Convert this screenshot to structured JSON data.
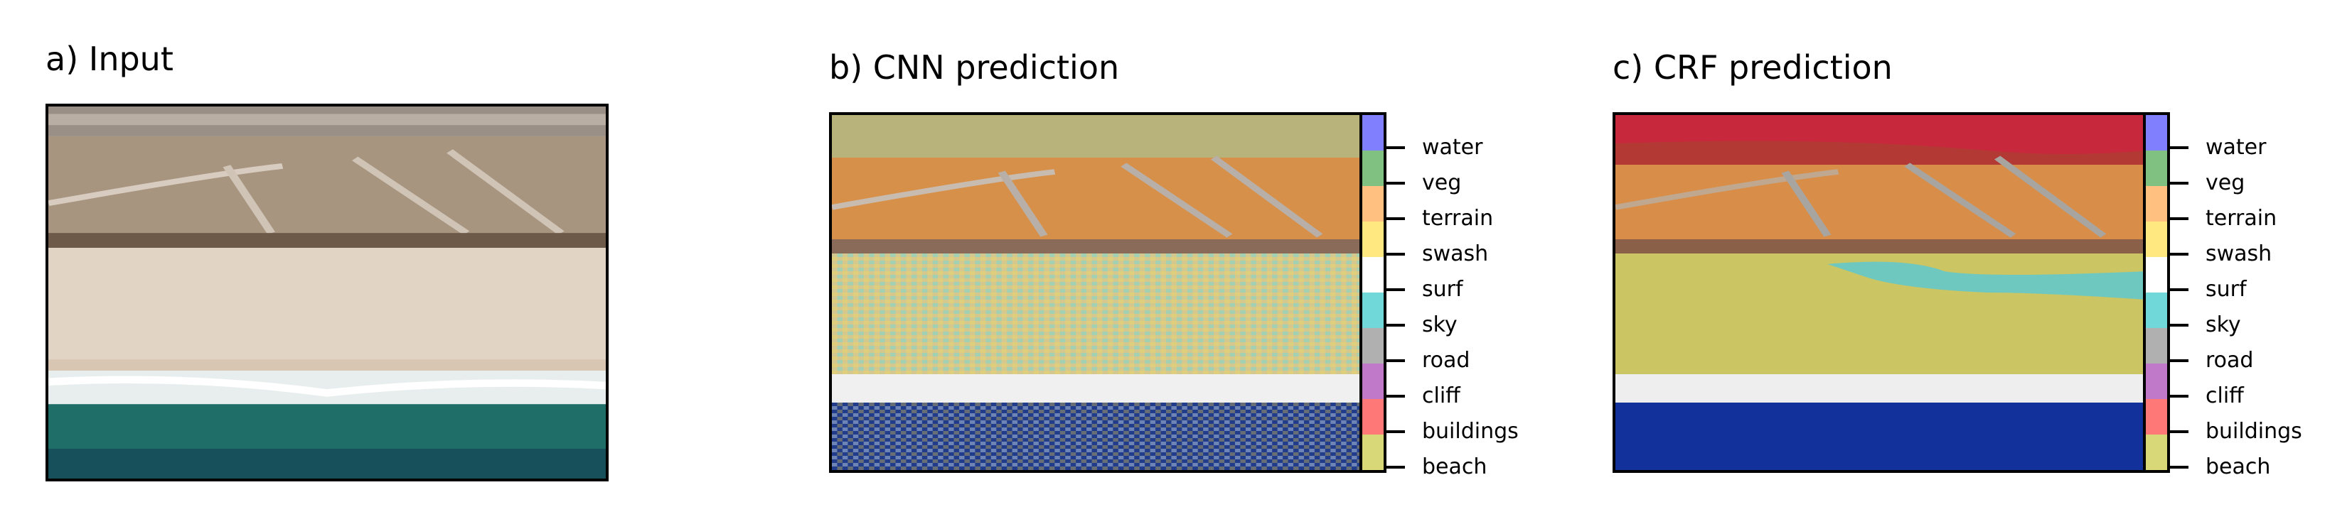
{
  "panels": [
    {
      "title": "a) Input"
    },
    {
      "title": "b) CNN prediction"
    },
    {
      "title": "c) CRF prediction"
    }
  ],
  "legend": {
    "classes": [
      "water",
      "veg",
      "terrain",
      "swash",
      "surf",
      "sky",
      "road",
      "cliff",
      "buildings",
      "beach"
    ],
    "colors": {
      "water": "#8080ff",
      "veg": "#80c080",
      "terrain": "#ffc080",
      "swash": "#ffe880",
      "surf": "#ffffff",
      "sky": "#70d8d8",
      "road": "#b0b0b0",
      "cliff": "#c078c8",
      "buildings": "#ff7878",
      "beach": "#d8d878"
    }
  }
}
